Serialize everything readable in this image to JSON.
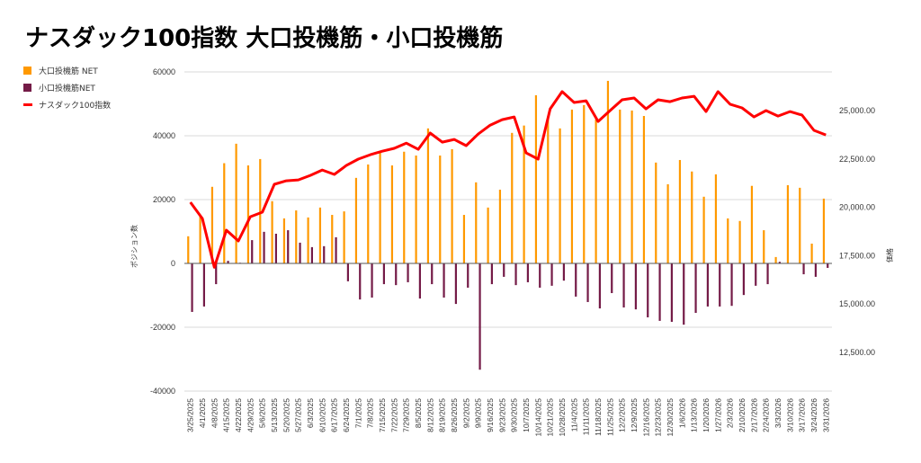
{
  "title": "ナスダック100指数 大口投機筋・小口投機筋",
  "legend": [
    {
      "label": "大口投機筋  NET",
      "color": "#FF9900"
    },
    {
      "label": "小口投機筋NET",
      "color": "#741B47"
    },
    {
      "label": "ナスダック100指数",
      "color": "#FF0000"
    }
  ],
  "chart_data": {
    "type": "bar+line",
    "title": "ナスダック100指数 大口投機筋・小口投機筋",
    "ylabel": "ポジション数",
    "y2label": "価格",
    "ylim": [
      -40000,
      60000
    ],
    "yticks": [
      "60000",
      "40000",
      "20000",
      "0",
      "-20000",
      "-40000"
    ],
    "yticks_values": [
      60000,
      40000,
      20000,
      0,
      -20000,
      -40000
    ],
    "y2lim": [
      10500,
      27000
    ],
    "y2ticks": [
      "25,000.00",
      "22,500.00",
      "20,000.00",
      "17,500.00",
      "15,000.00",
      "12,500.00"
    ],
    "y2ticks_values": [
      25000,
      22500,
      20000,
      17500,
      15000,
      12500
    ],
    "grid": true,
    "legend_position": "top-left",
    "categories": [
      "3/25/2025",
      "4/1/2025",
      "4/8/2025",
      "4/15/2025",
      "4/22/2025",
      "4/29/2025",
      "5/6/2025",
      "5/13/2025",
      "5/20/2025",
      "5/27/2025",
      "6/3/2025",
      "6/10/2025",
      "6/17/2025",
      "6/24/2025",
      "7/1/2025",
      "7/8/2025",
      "7/15/2025",
      "7/22/2025",
      "7/29/2025",
      "8/5/2025",
      "8/12/2025",
      "8/19/2025",
      "8/26/2025",
      "9/2/2025",
      "9/9/2025",
      "9/16/2025",
      "9/23/2025",
      "9/30/2025",
      "10/7/2025",
      "10/14/2025",
      "10/21/2025",
      "10/28/2025",
      "11/4/2025",
      "11/11/2025",
      "11/18/2025",
      "11/25/2025",
      "12/2/2025",
      "12/9/2025",
      "12/16/2025",
      "12/23/2025",
      "12/30/2025",
      "1/6/2026",
      "1/13/2026",
      "1/20/2026",
      "1/27/2026",
      "2/3/2026",
      "2/10/2026",
      "2/17/2026",
      "2/24/2026",
      "3/3/2026",
      "3/10/2026",
      "3/17/2026",
      "3/24/2026",
      "3/31/2026"
    ],
    "series": [
      {
        "name": "大口投機筋  NET",
        "type": "bar",
        "axis": "left",
        "color": "#FF9900",
        "values": [
          8500,
          15000,
          24000,
          31400,
          37500,
          30700,
          32700,
          19500,
          14100,
          16600,
          14400,
          17500,
          15200,
          16300,
          26800,
          31000,
          34700,
          30700,
          35000,
          33800,
          42300,
          33800,
          35800,
          15200,
          25400,
          17500,
          23100,
          40900,
          43200,
          52700,
          46000,
          42300,
          48200,
          49600,
          45100,
          57200,
          48200,
          47900,
          46200,
          31600,
          24800,
          32400,
          28800,
          20900,
          27900,
          14100,
          13300,
          24300,
          10400,
          2000,
          24500,
          23700,
          6200,
          20300
        ]
      },
      {
        "name": "小口投機筋NET",
        "type": "bar",
        "axis": "left",
        "color": "#741B47",
        "values": [
          -15200,
          -13500,
          -6500,
          800,
          200,
          7300,
          9900,
          9300,
          10400,
          6500,
          5100,
          5400,
          8200,
          -5600,
          -11300,
          -10700,
          -6500,
          -6800,
          -5900,
          -11000,
          -6500,
          -10700,
          -12700,
          -7600,
          -33300,
          -6500,
          -4200,
          -6800,
          -5900,
          -7600,
          -7000,
          -5400,
          -10400,
          -12100,
          -14100,
          -9300,
          -13800,
          -14400,
          -16900,
          -18000,
          -18300,
          -19200,
          -15500,
          -13500,
          -13500,
          -13300,
          -9900,
          -7000,
          -6500,
          500,
          0,
          -3400,
          -4200,
          -1400
        ]
      },
      {
        "name": "ナスダック100指数",
        "type": "line",
        "axis": "right",
        "color": "#FF0000",
        "values": [
          20260,
          19420,
          16900,
          18820,
          18260,
          19510,
          19750,
          21190,
          21370,
          21420,
          21650,
          21930,
          21700,
          22160,
          22490,
          22720,
          22900,
          23050,
          23320,
          23000,
          23840,
          23370,
          23510,
          23190,
          23790,
          24250,
          24530,
          24670,
          22810,
          22490,
          25090,
          25980,
          25420,
          25510,
          24440,
          25000,
          25560,
          25650,
          25090,
          25560,
          25460,
          25650,
          25740,
          24950,
          25980,
          25330,
          25140,
          24670,
          25000,
          24720,
          24950,
          24770,
          23980,
          23740
        ]
      }
    ]
  }
}
